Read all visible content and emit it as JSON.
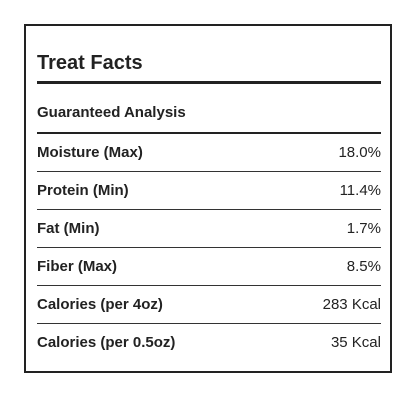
{
  "header": {
    "title": "Treat Facts"
  },
  "section": {
    "title": "Guaranteed Analysis"
  },
  "table": {
    "rows": [
      [
        "Moisture (Max)",
        "18.0%"
      ],
      [
        "Protein (Min)",
        "11.4%"
      ],
      [
        "Fat (Min)",
        "1.7%"
      ],
      [
        "Fiber (Max)",
        "8.5%"
      ],
      [
        "Calories (per 4oz)",
        "283 Kcal"
      ],
      [
        "Calories (per 0.5oz)",
        "35 Kcal"
      ]
    ]
  }
}
